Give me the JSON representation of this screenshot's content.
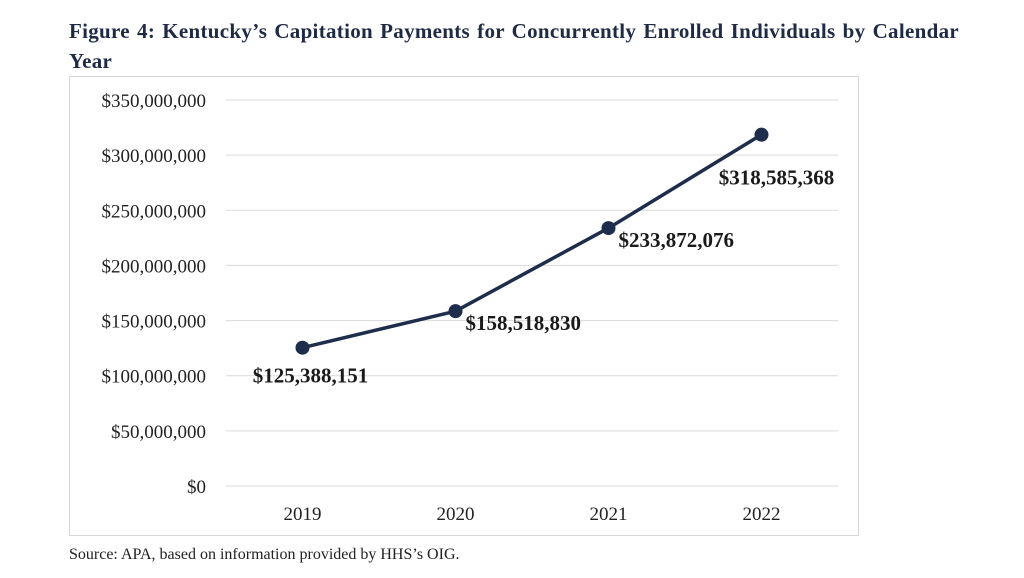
{
  "figure": {
    "title": "Figure 4: Kentucky’s Capitation Payments for Concurrently Enrolled Individuals by Calendar Year",
    "source": "Source: APA, based on information provided by HHS’s OIG."
  },
  "chart_data": {
    "type": "line",
    "title": "Figure 4: Kentucky’s Capitation Payments for Concurrently Enrolled Individuals by Calendar Year",
    "xlabel": "",
    "ylabel": "",
    "categories": [
      "2019",
      "2020",
      "2021",
      "2022"
    ],
    "series": [
      {
        "values": [
          125388151,
          158518830,
          233872076,
          318585368
        ]
      }
    ],
    "data_labels": [
      "$125,388,151",
      "$158,518,830",
      "$233,872,076",
      "$318,585,368"
    ],
    "ylim": [
      0,
      350000000
    ],
    "y_ticks": [
      0,
      50000000,
      100000000,
      150000000,
      200000000,
      250000000,
      300000000,
      350000000
    ],
    "y_tick_labels": [
      "$0",
      "$50,000,000",
      "$100,000,000",
      "$150,000,000",
      "$200,000,000",
      "$250,000,000",
      "$300,000,000",
      "$350,000,000"
    ],
    "grid": true,
    "legend": "none",
    "line_color": "#1f2d4d",
    "grid_color": "#d9d9d9"
  }
}
